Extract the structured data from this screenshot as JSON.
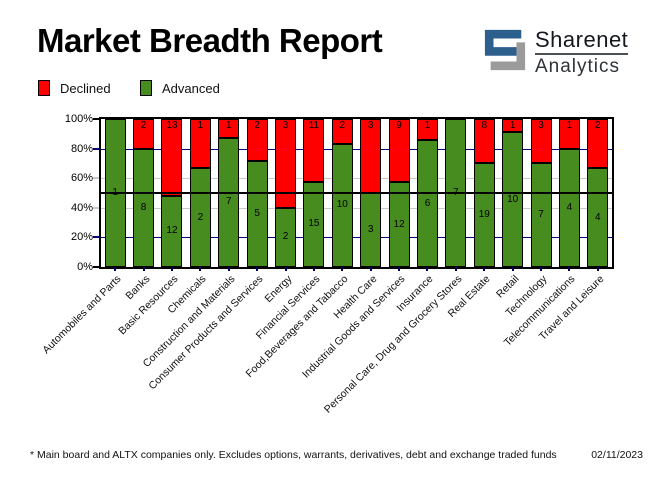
{
  "page": {
    "title": "Market Breadth Report",
    "footnote": "* Main board and ALTX companies only. Excludes options, warrants, derivatives, debt and exchange traded funds",
    "date": "02/11/2023"
  },
  "logo": {
    "name": "Sharenet",
    "sub": "Analytics",
    "mark_blue": "#2d5f8d",
    "mark_gray": "#9b9b9b"
  },
  "chart_data": {
    "type": "bar",
    "stacked": true,
    "normalized": "percent",
    "title": "Market Breadth Report",
    "categories": [
      "Automobiles and Parts",
      "Banks",
      "Basic Resources",
      "Chemicals",
      "Construction and Materials",
      "Consumer Products and Services",
      "Energy",
      "Financial Services",
      "Food,Beverages and Tabacco",
      "Health Care",
      "Industrial Goods and Services",
      "Insurance",
      "Personal Care, Drug and Grocery Stores",
      "Real Estate",
      "Retail",
      "Technology",
      "Telecommunications",
      "Travel and Leisure"
    ],
    "series": [
      {
        "name": "Declined",
        "color": "#fe0000",
        "values": [
          0,
          2,
          13,
          1,
          1,
          2,
          3,
          11,
          2,
          3,
          9,
          1,
          0,
          8,
          1,
          3,
          1,
          2
        ]
      },
      {
        "name": "Advanced",
        "color": "#478c1e",
        "values": [
          1,
          8,
          12,
          2,
          7,
          5,
          2,
          15,
          10,
          3,
          12,
          6,
          7,
          19,
          10,
          7,
          4,
          4
        ]
      }
    ],
    "ylim": [
      0,
      100
    ],
    "ytick_labels": [
      "0%",
      "20%",
      "40%",
      "60%",
      "80%",
      "100%"
    ],
    "ytick_pcts": [
      0,
      20,
      40,
      60,
      80,
      100
    ],
    "ytick_colors": [
      "#000000",
      "#000080",
      "#c9c9c9",
      "#c9c9c9",
      "#000080",
      "#000000"
    ],
    "gridlines": [
      {
        "pct": 20,
        "color": "#000080"
      },
      {
        "pct": 40,
        "color": "#c9c9c9"
      },
      {
        "pct": 60,
        "color": "#c9c9c9"
      },
      {
        "pct": 80,
        "color": "#000080"
      }
    ],
    "midline_pct": 50,
    "value_labels": true,
    "legend_position": "top-left"
  }
}
